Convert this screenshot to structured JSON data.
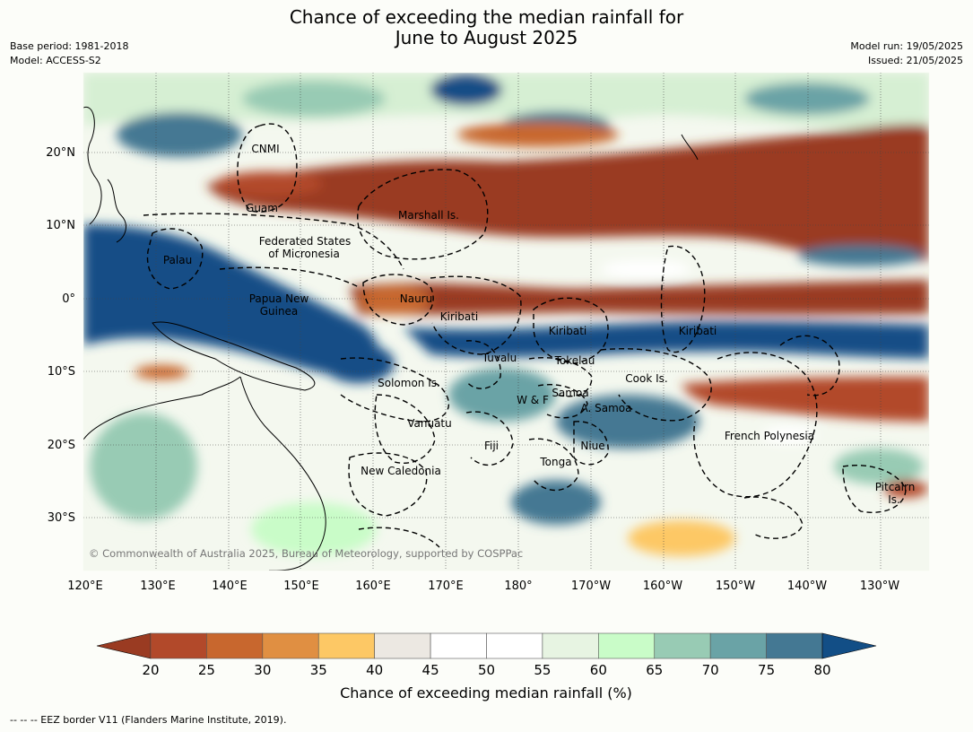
{
  "title_line1": "Chance of exceeding the median rainfall for",
  "title_line2": "June to August 2025",
  "base_period": "Base period: 1981-2018",
  "model": "Model: ACCESS-S2",
  "model_run": "Model run: 19/05/2025",
  "issued": "Issued: 21/05/2025",
  "lat_labels": [
    "20°N",
    "10°N",
    "0°",
    "10°S",
    "20°S",
    "30°S"
  ],
  "lon_labels": [
    "120°E",
    "130°E",
    "140°E",
    "150°E",
    "160°E",
    "170°E",
    "180°",
    "170°W",
    "160°W",
    "150°W",
    "140°W",
    "130°W"
  ],
  "regions": [
    {
      "name": "CNMI"
    },
    {
      "name": "Guam"
    },
    {
      "name": "Marshall Is."
    },
    {
      "name": "Federated States"
    },
    {
      "name": "of Micronesia"
    },
    {
      "name": "Palau"
    },
    {
      "name": "Papua New"
    },
    {
      "name": "Guinea"
    },
    {
      "name": "Nauru"
    },
    {
      "name": "Kiribati"
    },
    {
      "name": "Kiribati"
    },
    {
      "name": "Kiribati"
    },
    {
      "name": "Tuvalu"
    },
    {
      "name": "Tokelau"
    },
    {
      "name": "Cook Is."
    },
    {
      "name": "Solomon Is."
    },
    {
      "name": "Samoa"
    },
    {
      "name": "W & F"
    },
    {
      "name": "A. Samoa"
    },
    {
      "name": "Vanuatu"
    },
    {
      "name": "Fiji"
    },
    {
      "name": "Niue"
    },
    {
      "name": "French Polynesia"
    },
    {
      "name": "Tonga"
    },
    {
      "name": "New Caledonia"
    },
    {
      "name": "Pitcairn"
    },
    {
      "name": "Is."
    }
  ],
  "copyright": "© Commonwealth of Australia 2025, Bureau of Meteorology, supported by COSPPac",
  "colorbar": {
    "title": "Chance of exceeding median rainfall (%)",
    "ticks": [
      "20",
      "25",
      "30",
      "35",
      "40",
      "45",
      "50",
      "55",
      "60",
      "65",
      "70",
      "75",
      "80"
    ],
    "colors": [
      "#9a3b22",
      "#b2492a",
      "#c8672e",
      "#e08f42",
      "#fdc865",
      "#ece8e2",
      "#ffffff",
      "#ffffff",
      "#e7f4e2",
      "#c9fcc8",
      "#98cbb4",
      "#6aa3a6",
      "#447893",
      "#124e86"
    ]
  },
  "footer": "--  --  -- EEZ border V11 (Flanders Marine Institute, 2019)."
}
